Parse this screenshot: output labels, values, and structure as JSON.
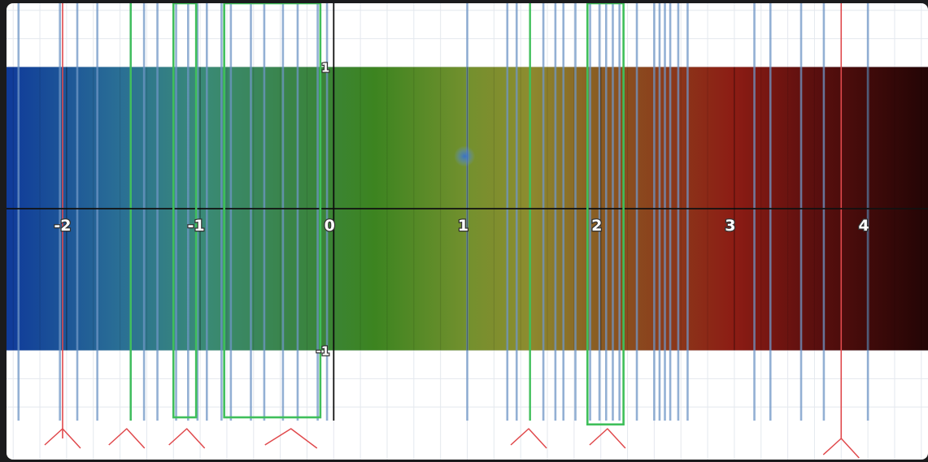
{
  "chart_data": {
    "type": "spectrum-bands",
    "title": "",
    "xlabel": "",
    "ylabel": "",
    "xlim": [
      -2.45,
      4.45
    ],
    "ylim": [
      -1.45,
      1.45
    ],
    "x_ticks": [
      "-2",
      "-1",
      "0",
      "1",
      "2",
      "3",
      "4"
    ],
    "x_tick_values": [
      -2,
      -1,
      0,
      1,
      2,
      3,
      4
    ],
    "y_ticks": [
      "1",
      "-1"
    ],
    "y_tick_values": [
      1,
      -1
    ],
    "grid": true,
    "band": {
      "y_range": [
        -1,
        1
      ],
      "gradient_stops": [
        {
          "x": -2.45,
          "color": "#0f3a9a"
        },
        {
          "x": -1.6,
          "color": "#2a6f95"
        },
        {
          "x": -1.0,
          "color": "#3a8a78"
        },
        {
          "x": -0.3,
          "color": "#3a8446"
        },
        {
          "x": 0.3,
          "color": "#3c8420"
        },
        {
          "x": 1.0,
          "color": "#73902e"
        },
        {
          "x": 1.45,
          "color": "#8c8c2f"
        },
        {
          "x": 2.0,
          "color": "#8a5a22"
        },
        {
          "x": 3.0,
          "color": "#8c1c14"
        },
        {
          "x": 3.6,
          "color": "#5a0f0e"
        },
        {
          "x": 4.45,
          "color": "#230505"
        }
      ]
    },
    "spectral_lines": [
      -2.36,
      -2.05,
      -1.92,
      -1.77,
      -1.52,
      -1.42,
      -1.32,
      -1.18,
      -1.09,
      -1.02,
      -0.95,
      -0.84,
      -0.77,
      -0.62,
      -0.52,
      -0.38,
      -0.27,
      -0.12,
      -0.05,
      1.0,
      1.3,
      1.37,
      1.57,
      1.66,
      1.72,
      1.81,
      1.92,
      1.99,
      2.04,
      2.09,
      2.14,
      2.27,
      2.4,
      2.44,
      2.48,
      2.52,
      2.58,
      2.65,
      3.15,
      3.27,
      3.5,
      3.67,
      4.0
    ],
    "highlight_lines": {
      "green": [
        -1.52,
        1.47
      ],
      "red": [
        -2.03,
        3.8
      ]
    },
    "green_boxes": [
      {
        "x0": -1.2,
        "x1": -1.03,
        "y0": -1.45,
        "y1": 1.45
      },
      {
        "x0": -0.82,
        "x1": -0.1,
        "y0": -1.45,
        "y1": 1.45
      },
      {
        "x0": 1.9,
        "x1": 2.17,
        "y0": -1.5,
        "y1": 1.45
      }
    ],
    "blue_dot": {
      "x": 0.98,
      "y": 0.37
    },
    "peak_markers": [
      -2.03,
      -1.55,
      -1.1,
      -0.32,
      1.46,
      2.05,
      3.8
    ],
    "colors": {
      "spectral_line": "#6f95c5",
      "green_line": "#3fbf5a",
      "red_line": "#e0494c",
      "green_box": "#3fbf5a",
      "peak_marker": "#e0494c",
      "axis": "#111111",
      "grid": "#e4e8ee",
      "dot": "#3b73d6"
    }
  }
}
